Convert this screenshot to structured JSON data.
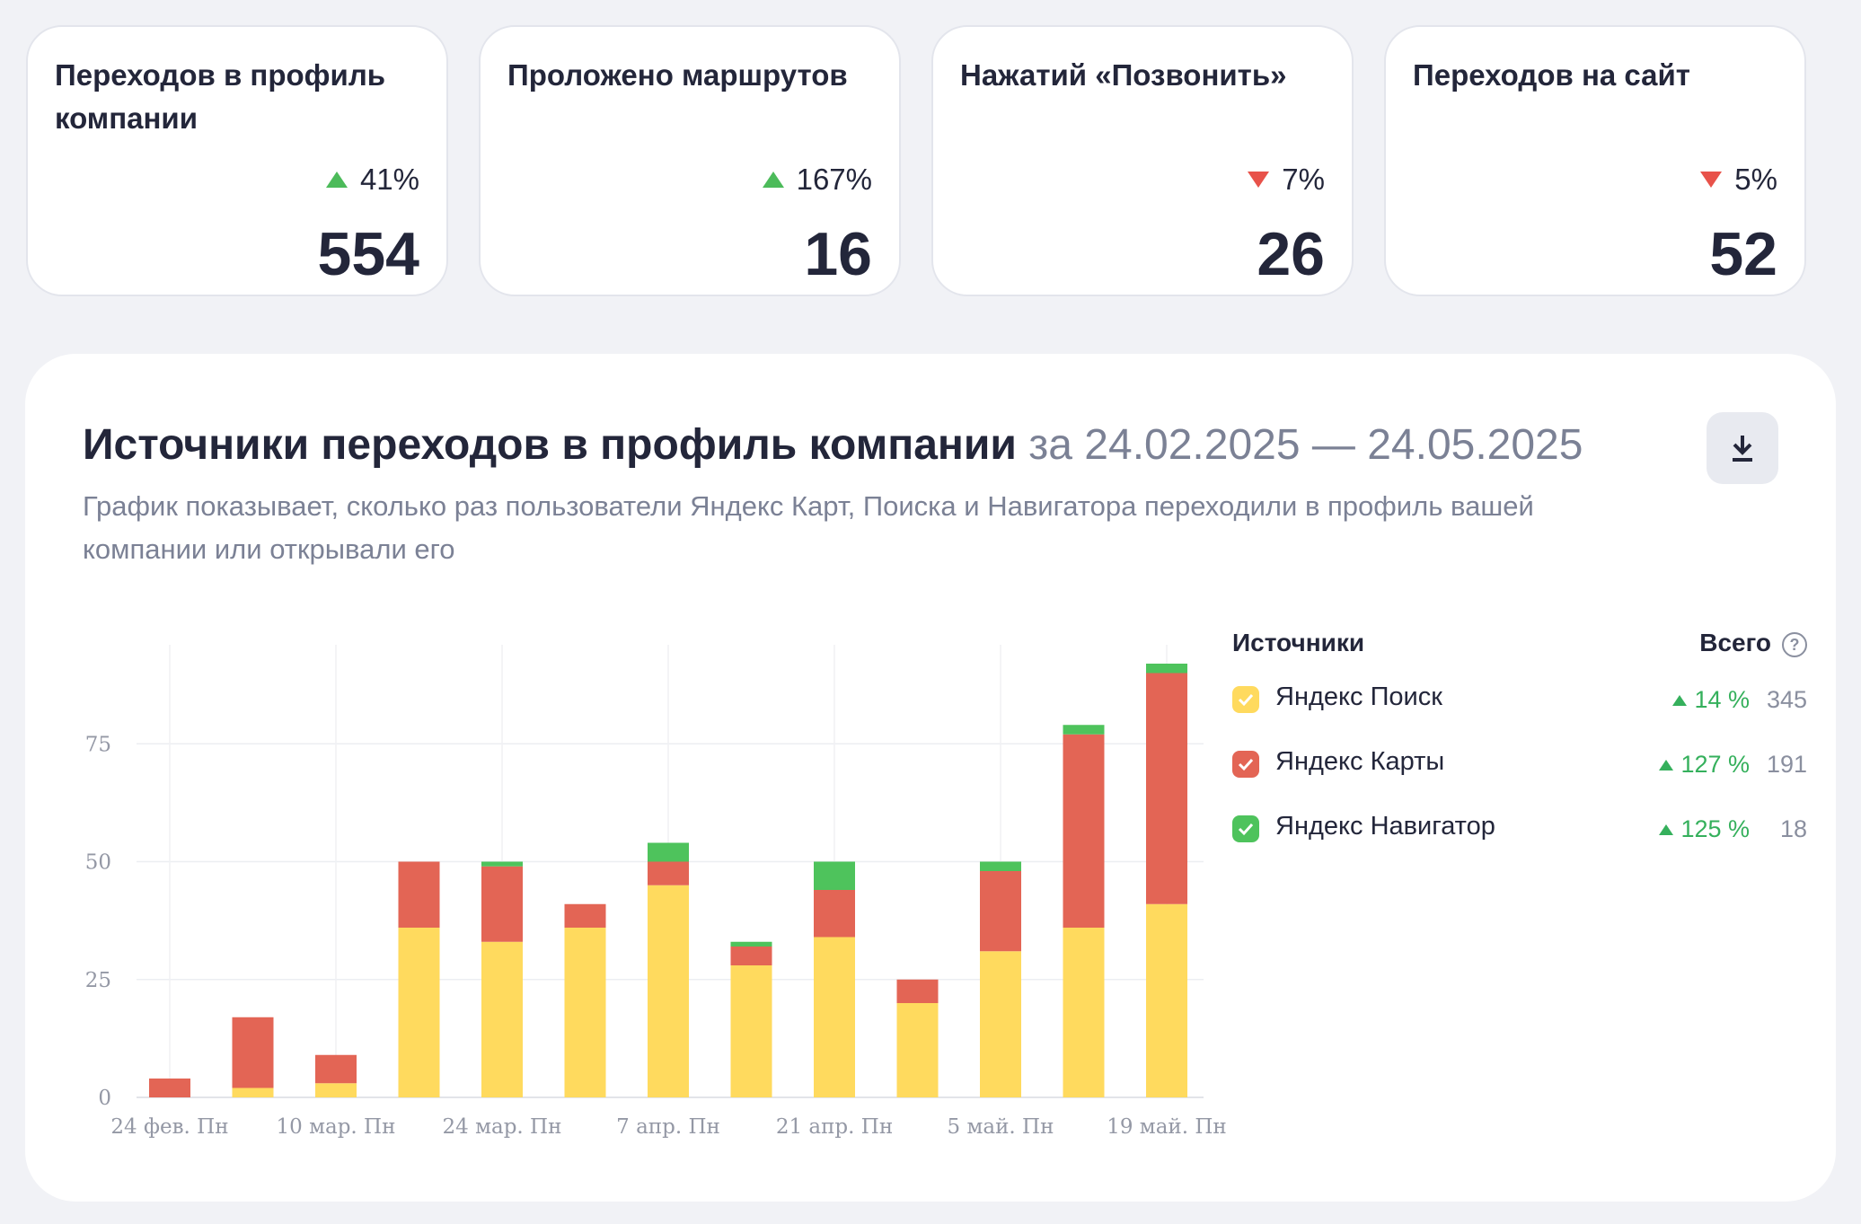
{
  "kpis": [
    {
      "title": "Переходов в профиль компании",
      "delta": "41%",
      "direction": "up",
      "value": "554"
    },
    {
      "title": "Проложено маршрутов",
      "delta": "167%",
      "direction": "up",
      "value": "16"
    },
    {
      "title": "Нажатий «Позвонить»",
      "delta": "7%",
      "direction": "down",
      "value": "26"
    },
    {
      "title": "Переходов на сайт",
      "delta": "5%",
      "direction": "down",
      "value": "52"
    }
  ],
  "panel": {
    "title": "Источники переходов в профиль компании",
    "period": "за 24.02.2025 — 24.05.2025",
    "subtitle": "График показывает, сколько раз пользователи Яндекс Карт, Поиска и Навигатора переходили в профиль вашей компании или открывали его",
    "download_icon": "download-icon"
  },
  "legend": {
    "sources_label": "Источники",
    "total_label": "Всего",
    "help_icon": "question-circle-icon",
    "help_glyph": "?",
    "items": [
      {
        "name": "Яндекс Поиск",
        "delta": "14 %",
        "total": "345",
        "color": "#ffda5e"
      },
      {
        "name": "Яндекс Карты",
        "delta": "127 %",
        "total": "191",
        "color": "#e36555"
      },
      {
        "name": "Яндекс Навигатор",
        "delta": "125 %",
        "total": "18",
        "color": "#4ec35c"
      }
    ]
  },
  "chart_data": {
    "type": "bar",
    "stacked": true,
    "ylim": [
      0,
      96
    ],
    "yticks": [
      0,
      25,
      50,
      75
    ],
    "grid": true,
    "legend_position": "right",
    "xtick_labels": [
      "24 фев. Пн",
      "10 мар. Пн",
      "24 мар. Пн",
      "7 апр. Пн",
      "21 апр. Пн",
      "5 май. Пн",
      "19 май. Пн"
    ],
    "xtick_indices": [
      0,
      2,
      4,
      6,
      8,
      10,
      12
    ],
    "categories": [
      "24 фев.",
      "3 мар.",
      "10 мар.",
      "17 мар.",
      "24 мар.",
      "31 мар.",
      "7 апр.",
      "14 апр.",
      "21 апр.",
      "28 апр.",
      "5 май.",
      "12 май.",
      "19 май."
    ],
    "series": [
      {
        "name": "Яндекс Поиск",
        "color": "#ffda5e",
        "values": [
          0,
          2,
          3,
          36,
          33,
          36,
          45,
          28,
          34,
          20,
          31,
          36,
          41
        ]
      },
      {
        "name": "Яндекс Карты",
        "color": "#e36555",
        "values": [
          4,
          15,
          6,
          14,
          16,
          5,
          5,
          4,
          10,
          5,
          17,
          41,
          49
        ]
      },
      {
        "name": "Яндекс Навигатор",
        "color": "#4ec35c",
        "values": [
          0,
          0,
          0,
          0,
          1,
          0,
          4,
          1,
          6,
          0,
          2,
          2,
          2
        ]
      }
    ]
  }
}
